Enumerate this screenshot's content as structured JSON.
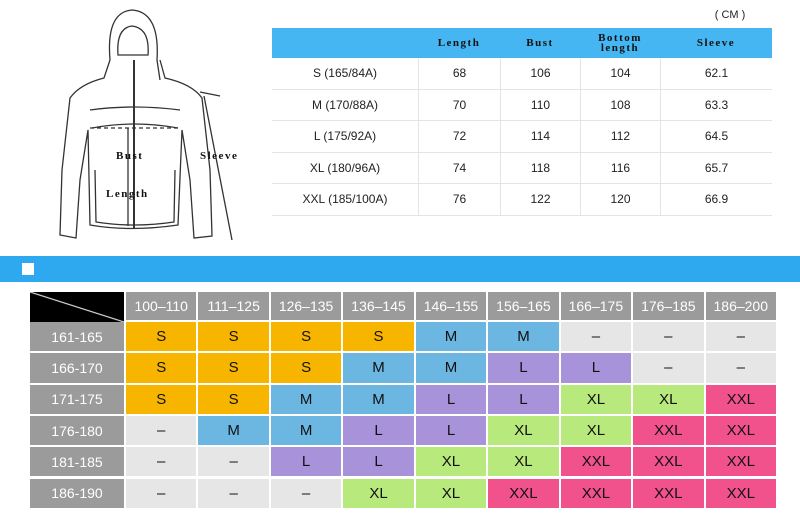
{
  "unit": "( CM )",
  "diagram": {
    "labels": [
      "Bust",
      "Sleeve",
      "Length"
    ]
  },
  "measurements": {
    "header": [
      "Length",
      "Bust",
      "Bottom length",
      "Sleeve"
    ],
    "rows": [
      {
        "size": "S (165/84A)",
        "values": [
          68,
          106,
          104,
          62.1
        ]
      },
      {
        "size": "M (170/88A)",
        "values": [
          70,
          110,
          108,
          63.3
        ]
      },
      {
        "size": "L (175/92A)",
        "values": [
          72,
          114,
          112,
          64.5
        ]
      },
      {
        "size": "XL (180/96A)",
        "values": [
          74,
          118,
          116,
          65.7
        ]
      },
      {
        "size": "XXL (185/100A)",
        "values": [
          76,
          122,
          120,
          66.9
        ]
      }
    ]
  },
  "size_grid": {
    "columns": [
      "100–110",
      "111–125",
      "126–135",
      "136–145",
      "146–155",
      "156–165",
      "166–175",
      "176–185",
      "186–200"
    ],
    "rows": [
      {
        "label": "161-165",
        "cells": [
          "S",
          "S",
          "S",
          "S",
          "M",
          "M",
          "–",
          "–",
          "–"
        ]
      },
      {
        "label": "166-170",
        "cells": [
          "S",
          "S",
          "S",
          "M",
          "M",
          "L",
          "L",
          "–",
          "–"
        ]
      },
      {
        "label": "171-175",
        "cells": [
          "S",
          "S",
          "M",
          "M",
          "L",
          "L",
          "XL",
          "XL",
          "XXL"
        ]
      },
      {
        "label": "176-180",
        "cells": [
          "–",
          "M",
          "M",
          "L",
          "L",
          "XL",
          "XL",
          "XXL",
          "XXL"
        ]
      },
      {
        "label": "181-185",
        "cells": [
          "–",
          "–",
          "L",
          "L",
          "XL",
          "XL",
          "XXL",
          "XXL",
          "XXL"
        ]
      },
      {
        "label": "186-190",
        "cells": [
          "–",
          "–",
          "–",
          "XL",
          "XL",
          "XXL",
          "XXL",
          "XXL",
          "XXL"
        ]
      }
    ],
    "colors": {
      "S": "#f7b500",
      "M": "#6cb6e2",
      "L": "#a892d9",
      "XL": "#b8e97c",
      "XXL": "#f2528c",
      "–": "#e6e6e6"
    }
  }
}
